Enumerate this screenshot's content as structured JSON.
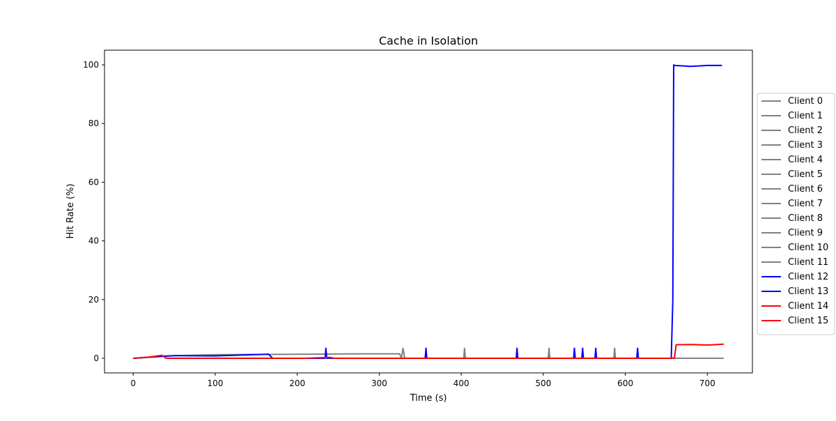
{
  "chart_data": {
    "type": "line",
    "title": "Cache in  Isolation",
    "xlabel": "Time (s)",
    "ylabel": "Hit Rate (%)",
    "xlim": [
      -35,
      755
    ],
    "ylim": [
      -5,
      105
    ],
    "xticks": [
      0,
      100,
      200,
      300,
      400,
      500,
      600,
      700
    ],
    "yticks": [
      0,
      20,
      40,
      60,
      80,
      100
    ],
    "grid": false,
    "legend_position": "right-outside",
    "series": [
      {
        "name": "Client 0",
        "color": "#808080"
      },
      {
        "name": "Client 1",
        "color": "#808080"
      },
      {
        "name": "Client 2",
        "color": "#808080"
      },
      {
        "name": "Client 3",
        "color": "#808080"
      },
      {
        "name": "Client 4",
        "color": "#808080"
      },
      {
        "name": "Client 5",
        "color": "#808080"
      },
      {
        "name": "Client 6",
        "color": "#808080"
      },
      {
        "name": "Client 7",
        "color": "#808080"
      },
      {
        "name": "Client 8",
        "color": "#808080"
      },
      {
        "name": "Client 9",
        "color": "#808080"
      },
      {
        "name": "Client 10",
        "color": "#808080"
      },
      {
        "name": "Client 11",
        "color": "#808080"
      },
      {
        "name": "Client 12",
        "color": "#0000ff"
      },
      {
        "name": "Client 13",
        "color": "#0000ff"
      },
      {
        "name": "Client 14",
        "color": "#ff0000"
      },
      {
        "name": "Client 15",
        "color": "#ff0000"
      }
    ],
    "traces": [
      {
        "series": "Client 0",
        "color": "#808080",
        "x": [
          0,
          40,
          100,
          160,
          220,
          280,
          325,
          327,
          329,
          331,
          403,
          404,
          405,
          506,
          507,
          508,
          586,
          587,
          588,
          720
        ],
        "y": [
          0,
          0.8,
          1.2,
          1.3,
          1.4,
          1.5,
          1.5,
          0,
          3.4,
          0,
          0,
          3.4,
          0,
          0,
          3.4,
          0,
          0,
          3.4,
          0,
          0
        ]
      },
      {
        "series": "Client 12",
        "color": "#0000ff",
        "x": [
          0,
          50,
          100,
          165,
          170,
          234,
          235,
          236,
          356,
          357,
          358,
          467,
          468,
          469,
          537,
          538,
          539,
          547,
          548,
          549,
          563,
          564,
          565,
          614,
          615,
          616,
          656,
          658,
          659,
          660,
          680,
          700,
          718
        ],
        "y": [
          0,
          0.9,
          0.8,
          1.4,
          0,
          0,
          3.4,
          0,
          0,
          3.4,
          0,
          0,
          3.4,
          0,
          0,
          3.4,
          0,
          0,
          3.4,
          0,
          0,
          3.4,
          0,
          0,
          3.4,
          0,
          0,
          20,
          100,
          99.8,
          99.5,
          99.8,
          99.8
        ]
      },
      {
        "series": "Client 14",
        "color": "#ff0000",
        "x": [
          0,
          20,
          35,
          40,
          210,
          240,
          245,
          658,
          660,
          662,
          680,
          700,
          720
        ],
        "y": [
          0,
          0.4,
          1.0,
          0,
          0,
          0.3,
          0,
          0,
          0.2,
          4.6,
          4.7,
          4.5,
          4.8
        ]
      }
    ]
  }
}
